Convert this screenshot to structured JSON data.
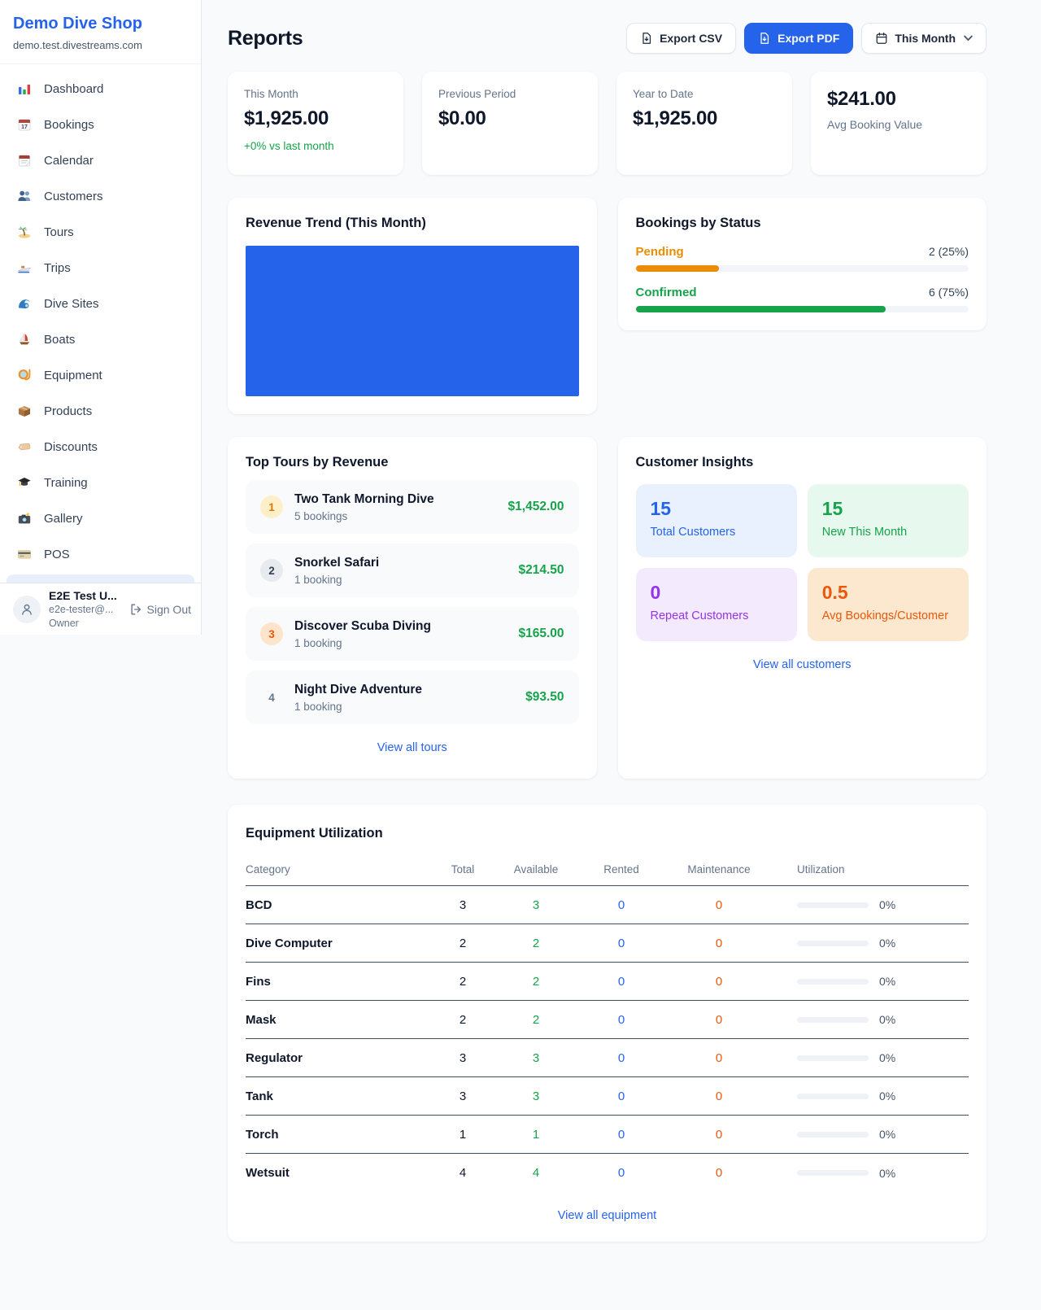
{
  "colors": {
    "accent_blue": "#2563eb",
    "pending_orange": "#ea8c05",
    "confirmed_green": "#16a34a",
    "money_green": "#16a34a",
    "repeat_purple": "#9333ea",
    "avg_orange": "#ea580c",
    "chart_bar_blue": "#2563eb"
  },
  "sidebar": {
    "brand": {
      "name": "Demo Dive Shop",
      "domain": "demo.test.divestreams.com"
    },
    "nav": [
      {
        "label": "Dashboard",
        "icon": "dashboard-icon"
      },
      {
        "label": "Bookings",
        "icon": "bookings-icon"
      },
      {
        "label": "Calendar",
        "icon": "calendar-icon"
      },
      {
        "label": "Customers",
        "icon": "customers-icon"
      },
      {
        "label": "Tours",
        "icon": "tours-icon"
      },
      {
        "label": "Trips",
        "icon": "trips-icon"
      },
      {
        "label": "Dive Sites",
        "icon": "dive-sites-icon"
      },
      {
        "label": "Boats",
        "icon": "boats-icon"
      },
      {
        "label": "Equipment",
        "icon": "equipment-icon"
      },
      {
        "label": "Products",
        "icon": "products-icon"
      },
      {
        "label": "Discounts",
        "icon": "discounts-icon"
      },
      {
        "label": "Training",
        "icon": "training-icon"
      },
      {
        "label": "Gallery",
        "icon": "gallery-icon"
      },
      {
        "label": "POS",
        "icon": "pos-icon"
      }
    ],
    "user": {
      "name": "E2E Test U...",
      "email": "e2e-tester@...",
      "role": "Owner",
      "signout": "Sign Out"
    }
  },
  "header": {
    "title": "Reports",
    "export_csv": "Export CSV",
    "export_pdf": "Export PDF",
    "period": "This Month"
  },
  "stats": [
    {
      "label": "This Month",
      "value": "$1,925.00",
      "delta": "+0% vs last month"
    },
    {
      "label": "Previous Period",
      "value": "$0.00"
    },
    {
      "label": "Year to Date",
      "value": "$1,925.00"
    },
    {
      "label": "Avg Booking Value",
      "value": "$241.00"
    }
  ],
  "revenue_trend": {
    "title": "Revenue Trend (This Month)"
  },
  "bookings_by_status": {
    "title": "Bookings by Status",
    "rows": [
      {
        "label": "Pending",
        "count": "2 (25%)",
        "pct": 25,
        "color": "#ea8c05"
      },
      {
        "label": "Confirmed",
        "count": "6 (75%)",
        "pct": 75,
        "color": "#16a34a"
      }
    ]
  },
  "top_tours": {
    "title": "Top Tours by Revenue",
    "items": [
      {
        "rank": "1",
        "name": "Two Tank Morning Dive",
        "bookings": "5 bookings",
        "amount": "$1,452.00"
      },
      {
        "rank": "2",
        "name": "Snorkel Safari",
        "bookings": "1 booking",
        "amount": "$214.50"
      },
      {
        "rank": "3",
        "name": "Discover Scuba Diving",
        "bookings": "1 booking",
        "amount": "$165.00"
      },
      {
        "rank": "4",
        "name": "Night Dive Adventure",
        "bookings": "1 booking",
        "amount": "$93.50"
      }
    ],
    "link": "View all tours"
  },
  "customer_insights": {
    "title": "Customer Insights",
    "tiles": [
      {
        "value": "15",
        "label": "Total Customers"
      },
      {
        "value": "15",
        "label": "New This Month"
      },
      {
        "value": "0",
        "label": "Repeat Customers"
      },
      {
        "value": "0.5",
        "label": "Avg Bookings/Customer"
      }
    ],
    "link": "View all customers"
  },
  "equipment": {
    "title": "Equipment Utilization",
    "columns": [
      "Category",
      "Total",
      "Available",
      "Rented",
      "Maintenance",
      "Utilization"
    ],
    "rows": [
      {
        "category": "BCD",
        "total": "3",
        "available": "3",
        "rented": "0",
        "maintenance": "0",
        "utilization": "0%"
      },
      {
        "category": "Dive Computer",
        "total": "2",
        "available": "2",
        "rented": "0",
        "maintenance": "0",
        "utilization": "0%"
      },
      {
        "category": "Fins",
        "total": "2",
        "available": "2",
        "rented": "0",
        "maintenance": "0",
        "utilization": "0%"
      },
      {
        "category": "Mask",
        "total": "2",
        "available": "2",
        "rented": "0",
        "maintenance": "0",
        "utilization": "0%"
      },
      {
        "category": "Regulator",
        "total": "3",
        "available": "3",
        "rented": "0",
        "maintenance": "0",
        "utilization": "0%"
      },
      {
        "category": "Tank",
        "total": "3",
        "available": "3",
        "rented": "0",
        "maintenance": "0",
        "utilization": "0%"
      },
      {
        "category": "Torch",
        "total": "1",
        "available": "1",
        "rented": "0",
        "maintenance": "0",
        "utilization": "0%"
      },
      {
        "category": "Wetsuit",
        "total": "4",
        "available": "4",
        "rented": "0",
        "maintenance": "0",
        "utilization": "0%"
      }
    ],
    "link": "View all equipment"
  }
}
